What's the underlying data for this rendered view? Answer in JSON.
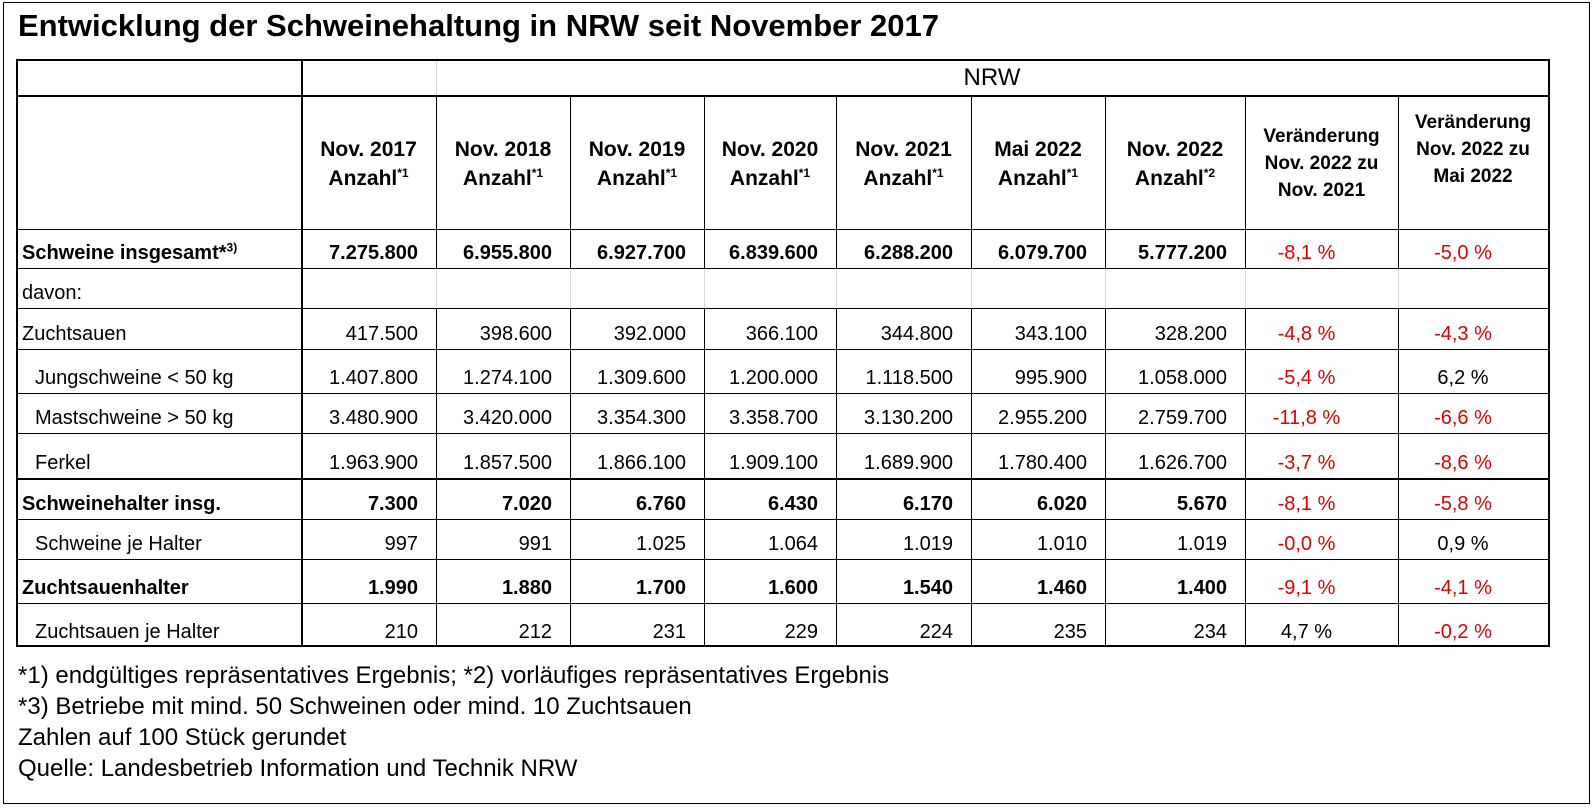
{
  "title": "Entwicklung der Schweinehaltung in NRW seit November 2017",
  "group_header": "NRW",
  "columns": [
    {
      "line1": "Nov. 2017",
      "line2": "Anzahl",
      "sup": "*1"
    },
    {
      "line1": "Nov. 2018",
      "line2": "Anzahl",
      "sup": "*1"
    },
    {
      "line1": "Nov. 2019",
      "line2": "Anzahl",
      "sup": "*1"
    },
    {
      "line1": "Nov. 2020",
      "line2": "Anzahl",
      "sup": "*1"
    },
    {
      "line1": "Nov. 2021",
      "line2": "Anzahl",
      "sup": "*1"
    },
    {
      "line1": "Mai 2022",
      "line2": "Anzahl",
      "sup": "*1"
    },
    {
      "line1": "Nov. 2022",
      "line2": "Anzahl",
      "sup": "*2"
    },
    {
      "line1": "Veränderung",
      "line2": "Nov. 2022 zu",
      "line3": "Nov. 2021"
    },
    {
      "line1": "Veränderung",
      "line2": "Nov. 2022 zu",
      "line3": "Mai 2022"
    }
  ],
  "rows": [
    {
      "label": "Schweine insgesamt*",
      "sup": "3)",
      "bold": true,
      "values": [
        "7.275.800",
        "6.955.800",
        "6.927.700",
        "6.839.600",
        "6.288.200",
        "6.079.700",
        "5.777.200"
      ],
      "change1": "-8,1 %",
      "change2": "-5,0 %"
    },
    {
      "label": "davon:",
      "bold": false,
      "values": [
        "",
        "",
        "",
        "",
        "",
        "",
        ""
      ],
      "change1": "",
      "change2": ""
    },
    {
      "label": "Zuchtsauen",
      "bold": false,
      "values": [
        "417.500",
        "398.600",
        "392.000",
        "366.100",
        "344.800",
        "343.100",
        "328.200"
      ],
      "change1": "-4,8 %",
      "change2": "-4,3 %"
    },
    {
      "label": "Jungschweine < 50 kg",
      "indent": true,
      "bold": false,
      "values": [
        "1.407.800",
        "1.274.100",
        "1.309.600",
        "1.200.000",
        "1.118.500",
        "995.900",
        "1.058.000"
      ],
      "change1": "-5,4 %",
      "change2": "6,2 %"
    },
    {
      "label": "Mastschweine > 50 kg",
      "indent": true,
      "bold": false,
      "values": [
        "3.480.900",
        "3.420.000",
        "3.354.300",
        "3.358.700",
        "3.130.200",
        "2.955.200",
        "2.759.700"
      ],
      "change1": "-11,8 %",
      "change2": "-6,6 %"
    },
    {
      "label": "Ferkel",
      "indent": true,
      "bold": false,
      "values": [
        "1.963.900",
        "1.857.500",
        "1.866.100",
        "1.909.100",
        "1.689.900",
        "1.780.400",
        "1.626.700"
      ],
      "change1": "-3,7 %",
      "change2": "-8,6 %"
    },
    {
      "label": "Schweinehalter insg.",
      "bold": true,
      "values": [
        "7.300",
        "7.020",
        "6.760",
        "6.430",
        "6.170",
        "6.020",
        "5.670"
      ],
      "change1": "-8,1 %",
      "change2": "-5,8 %"
    },
    {
      "label": "Schweine je Halter",
      "indent": true,
      "bold": false,
      "values": [
        "997",
        "991",
        "1.025",
        "1.064",
        "1.019",
        "1.010",
        "1.019"
      ],
      "change1": "-0,0 %",
      "change2": "0,9 %"
    },
    {
      "label": "Zuchtsauenhalter",
      "bold": true,
      "values": [
        "1.990",
        "1.880",
        "1.700",
        "1.600",
        "1.540",
        "1.460",
        "1.400"
      ],
      "change1": "-9,1 %",
      "change2": "-4,1 %"
    },
    {
      "label": "Zuchtsauen je Halter",
      "indent": true,
      "bold": false,
      "values": [
        "210",
        "212",
        "231",
        "229",
        "224",
        "235",
        "234"
      ],
      "change1": "4,7 %",
      "change2": "-0,2 %"
    }
  ],
  "notes": [
    "*1) endgültiges repräsentatives Ergebnis; *2) vorläufiges repräsentatives Ergebnis",
    "*3) Betriebe mit mind. 50 Schweinen oder mind. 10 Zuchtsauen",
    "Zahlen auf 100 Stück gerundet",
    "Quelle: Landesbetrieb Information und Technik NRW"
  ],
  "colors": {
    "negative": "#e00000",
    "text": "#000000",
    "grid_light": "#d9d9d9"
  },
  "chart_data": {
    "type": "table",
    "title": "Entwicklung der Schweinehaltung in NRW seit November 2017",
    "categories": [
      "Nov. 2017",
      "Nov. 2018",
      "Nov. 2019",
      "Nov. 2020",
      "Nov. 2021",
      "Mai 2022",
      "Nov. 2022"
    ],
    "series": [
      {
        "name": "Schweine insgesamt",
        "values": [
          7275800,
          6955800,
          6927700,
          6839600,
          6288200,
          6079700,
          5777200
        ]
      },
      {
        "name": "Zuchtsauen",
        "values": [
          417500,
          398600,
          392000,
          366100,
          344800,
          343100,
          328200
        ]
      },
      {
        "name": "Jungschweine < 50 kg",
        "values": [
          1407800,
          1274100,
          1309600,
          1200000,
          1118500,
          995900,
          1058000
        ]
      },
      {
        "name": "Mastschweine > 50 kg",
        "values": [
          3480900,
          3420000,
          3354300,
          3358700,
          3130200,
          2955200,
          2759700
        ]
      },
      {
        "name": "Ferkel",
        "values": [
          1963900,
          1857500,
          1866100,
          1909100,
          1689900,
          1780400,
          1626700
        ]
      },
      {
        "name": "Schweinehalter insg.",
        "values": [
          7300,
          7020,
          6760,
          6430,
          6170,
          6020,
          5670
        ]
      },
      {
        "name": "Schweine je Halter",
        "values": [
          997,
          991,
          1025,
          1064,
          1019,
          1010,
          1019
        ]
      },
      {
        "name": "Zuchtsauenhalter",
        "values": [
          1990,
          1880,
          1700,
          1600,
          1540,
          1460,
          1400
        ]
      },
      {
        "name": "Zuchtsauen je Halter",
        "values": [
          210,
          212,
          231,
          229,
          224,
          235,
          234
        ]
      }
    ]
  }
}
